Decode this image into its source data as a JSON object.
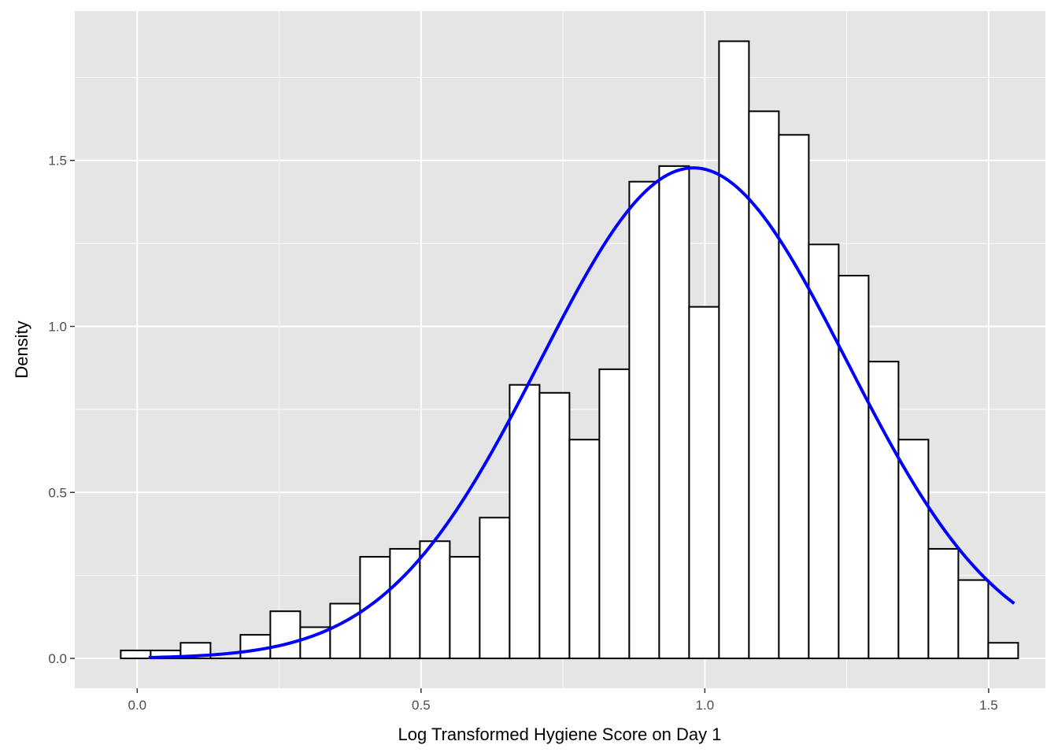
{
  "chart_data": {
    "type": "histogram",
    "title": "",
    "xlabel": "Log Transformed Hygiene Score on Day 1",
    "ylabel": "Density",
    "xlim": [
      -0.11,
      1.6
    ],
    "ylim": [
      -0.09,
      1.95
    ],
    "x_ticks": [
      0.0,
      0.5,
      1.0,
      1.5
    ],
    "x_tick_labels": [
      "0.0",
      "0.5",
      "1.0",
      "1.5"
    ],
    "y_ticks": [
      0.0,
      0.5,
      1.0,
      1.5
    ],
    "y_tick_labels": [
      "0.0",
      "0.5",
      "1.0",
      "1.5"
    ],
    "grid": true,
    "bins": {
      "start": -0.029,
      "width": 0.0527,
      "densities": [
        0.024,
        0.024,
        0.047,
        0.0,
        0.071,
        0.142,
        0.094,
        0.165,
        0.306,
        0.33,
        0.353,
        0.306,
        0.424,
        0.824,
        0.8,
        0.659,
        0.871,
        1.436,
        1.483,
        1.059,
        1.859,
        1.648,
        1.577,
        1.247,
        1.153,
        0.894,
        0.659,
        0.33,
        0.236,
        0.047
      ]
    },
    "normal_curve": {
      "mean": 0.98,
      "sd": 0.27,
      "x_range": [
        0.02,
        1.545
      ]
    },
    "colors": {
      "panel_background": "#e5e5e5",
      "grid": "#ffffff",
      "bar_fill": "#ffffff",
      "bar_outline": "#000000",
      "curve": "#0000ff"
    }
  }
}
